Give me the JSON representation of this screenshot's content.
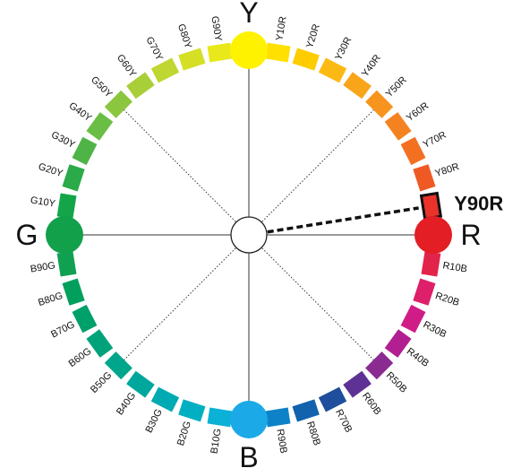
{
  "diagram": {
    "primaries": [
      {
        "label": "Y",
        "color": "#FFF200"
      },
      {
        "label": "R",
        "color": "#E31E24"
      },
      {
        "label": "B",
        "color": "#1BA9E8"
      },
      {
        "label": "G",
        "color": "#13A04B"
      }
    ],
    "hues": [
      {
        "label": "Y10R",
        "color": "#FFE000"
      },
      {
        "label": "Y20R",
        "color": "#FFCC00"
      },
      {
        "label": "Y30R",
        "color": "#FDB913"
      },
      {
        "label": "Y40R",
        "color": "#F9A51A"
      },
      {
        "label": "Y50R",
        "color": "#F7941D"
      },
      {
        "label": "Y60R",
        "color": "#F58220"
      },
      {
        "label": "Y70R",
        "color": "#F37021"
      },
      {
        "label": "Y80R",
        "color": "#EF5A24"
      },
      {
        "label": "Y90R",
        "color": "#E9332A"
      },
      {
        "label": "R10B",
        "color": "#E2244A"
      },
      {
        "label": "R20B",
        "color": "#DE1F6A"
      },
      {
        "label": "R30B",
        "color": "#D01C86"
      },
      {
        "label": "R40B",
        "color": "#B11F90"
      },
      {
        "label": "R50B",
        "color": "#8A2B92"
      },
      {
        "label": "R60B",
        "color": "#5E3295"
      },
      {
        "label": "R70B",
        "color": "#1F4E9C"
      },
      {
        "label": "R80B",
        "color": "#1262AE"
      },
      {
        "label": "R90B",
        "color": "#0E82C8"
      },
      {
        "label": "B10G",
        "color": "#0CB1D6"
      },
      {
        "label": "B20G",
        "color": "#00B0C2"
      },
      {
        "label": "B30G",
        "color": "#00AAB3"
      },
      {
        "label": "B40G",
        "color": "#00A79D"
      },
      {
        "label": "B50G",
        "color": "#00A68C"
      },
      {
        "label": "B60G",
        "color": "#00A27A"
      },
      {
        "label": "B70G",
        "color": "#00A06A"
      },
      {
        "label": "B80G",
        "color": "#00A05C"
      },
      {
        "label": "B90G",
        "color": "#10A052"
      },
      {
        "label": "G10Y",
        "color": "#14A54A"
      },
      {
        "label": "G20Y",
        "color": "#2AAA48"
      },
      {
        "label": "G30Y",
        "color": "#4FB447"
      },
      {
        "label": "G40Y",
        "color": "#6BBE45"
      },
      {
        "label": "G50Y",
        "color": "#8CC63F"
      },
      {
        "label": "G60Y",
        "color": "#A8CF38"
      },
      {
        "label": "G70Y",
        "color": "#BFD730"
      },
      {
        "label": "G80Y",
        "color": "#D5DF26"
      },
      {
        "label": "G90Y",
        "color": "#E8E81B"
      }
    ],
    "highlighted": "Y90R",
    "highlight_color": "#111111"
  }
}
